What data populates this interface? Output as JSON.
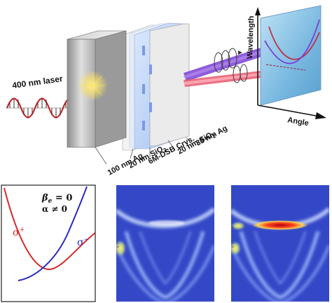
{
  "schematic": {
    "laser_label": "400 nm laser",
    "layers": [
      {
        "key": "ag_top",
        "text": "35 nm Ag"
      },
      {
        "key": "sio2_top",
        "text": "20 nm SiO",
        "sub": "2"
      },
      {
        "key": "crystal",
        "text": "6M-DSB Crys."
      },
      {
        "key": "sio2_bottom",
        "text": "20 nm SiO",
        "sub": "2"
      },
      {
        "key": "ag_bottom",
        "text": "100 nm Ag"
      }
    ],
    "screen": {
      "y_axis_label": "Wavelength",
      "x_axis_label": "Angle"
    }
  },
  "panels": {
    "theory": {
      "beta_symbol": "β",
      "beta_sub": "e",
      "beta_text": " = 0",
      "alpha_text": "α ≠ 0",
      "sigma_plus": "σ",
      "sigma_plus_sup": "+",
      "sigma_minus": "σ",
      "sigma_minus_sup": "−"
    },
    "measured": [
      {
        "key": "left_map"
      },
      {
        "key": "right_map"
      }
    ]
  },
  "colors": {
    "sigma_plus": "#d62828",
    "sigma_minus": "#2b2bc4",
    "map_background": "#3a4fd0",
    "purple_beam": "#7b3fd6",
    "red_beam": "#e85a6e"
  }
}
